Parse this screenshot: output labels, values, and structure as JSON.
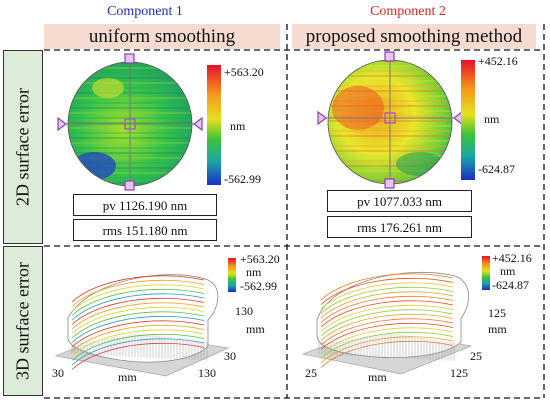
{
  "components": [
    {
      "title": "Component 1",
      "method": "uniform smoothing",
      "cbar_max": "+563.20",
      "cbar_min": "-562.99",
      "unit": "nm",
      "pv": "pv 1126.190 nm",
      "rms": "rms 151.180 nm",
      "axis_unit": "mm",
      "x_ticks": [
        "30",
        "130"
      ],
      "y_ticks": [
        "130",
        "30"
      ]
    },
    {
      "title": "Component 2",
      "method": "proposed smoothing method",
      "cbar_max": "+452.16",
      "cbar_min": "-624.87",
      "unit": "nm",
      "pv": "pv 1077.033 nm",
      "rms": "rms 176.261 nm",
      "axis_unit": "mm",
      "x_ticks": [
        "25",
        "125"
      ],
      "y_ticks": [
        "125",
        "25"
      ]
    }
  ],
  "rows": {
    "top": "2D surface error",
    "bottom": "3D surface error"
  },
  "colors": {
    "title1": "#1f2fbf",
    "title2": "#e0241b",
    "header_bg": "#f6dcd0",
    "side_bg": "#ddebd9"
  }
}
